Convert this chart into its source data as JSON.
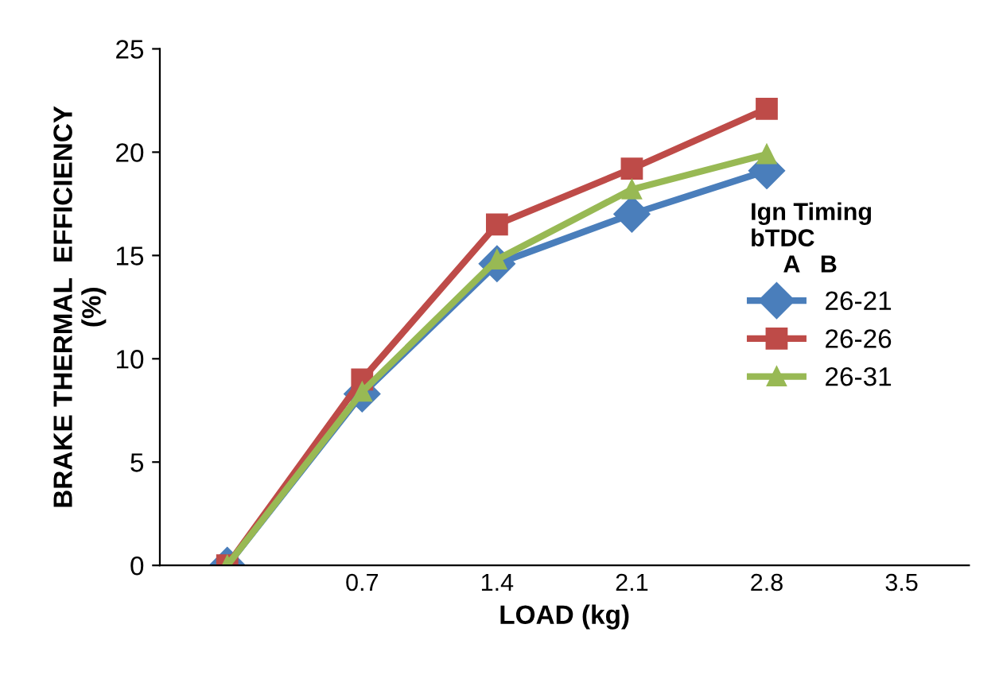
{
  "chart_data": {
    "type": "line",
    "xlabel": "LOAD (kg)",
    "ylabel": "BRAKE THERMAL  EFFICIENCY\n(%)",
    "legend_title": "Ign Timing\nbTDC\n     A   B",
    "categories": [
      null,
      "0.7",
      "1.4",
      "2.1",
      "2.8",
      "3.5"
    ],
    "series": [
      {
        "name": "26-21",
        "color": "#4a7ebb",
        "marker": "diamond",
        "values": [
          0,
          8.3,
          14.6,
          17.0,
          19.1,
          null
        ]
      },
      {
        "name": "26-26",
        "color": "#be4b48",
        "marker": "square",
        "values": [
          0,
          9.0,
          16.5,
          19.2,
          22.1,
          null
        ]
      },
      {
        "name": "26-31",
        "color": "#98b954",
        "marker": "triangle",
        "values": [
          0,
          8.4,
          14.8,
          18.2,
          19.9,
          null
        ]
      }
    ],
    "ylim": [
      0,
      25
    ],
    "yticks": [
      0,
      5,
      10,
      15,
      20,
      25
    ],
    "grid": false,
    "legend": "right",
    "line_style": "solid"
  }
}
